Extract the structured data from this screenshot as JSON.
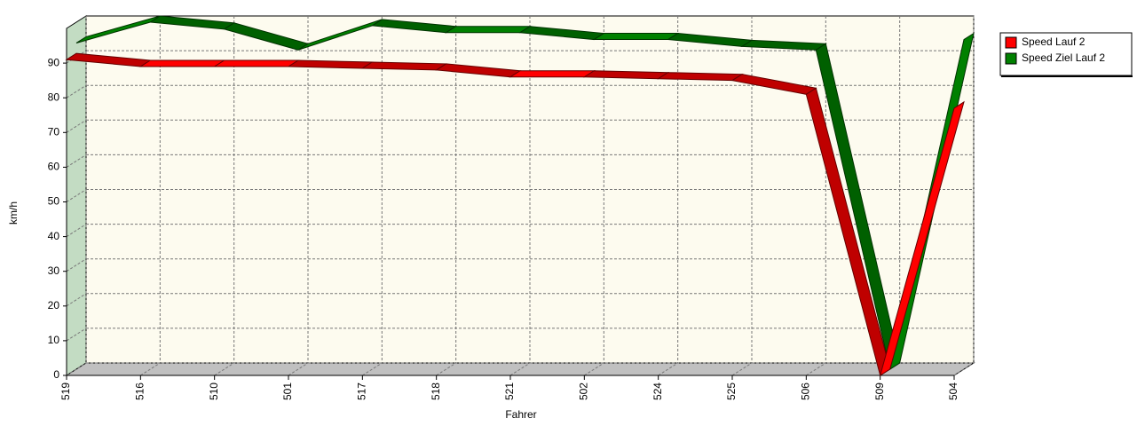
{
  "chart_data": {
    "type": "ribbon3d",
    "x_label": "Fahrer",
    "y_label": "km/h",
    "categories": [
      "519",
      "516",
      "510",
      "501",
      "517",
      "518",
      "521",
      "502",
      "524",
      "525",
      "506",
      "509",
      "504"
    ],
    "series": [
      {
        "name": "Speed Lauf 2",
        "color": "#ff0000",
        "values": [
          91,
          89,
          89,
          89,
          88.5,
          88,
          86,
          86,
          85.5,
          85,
          81,
          0,
          77
        ]
      },
      {
        "name": "Speed Ziel Lauf 2",
        "color": "#008000",
        "values": [
          94,
          100,
          98,
          92,
          99,
          97,
          97,
          95,
          95,
          93,
          92,
          0,
          95
        ]
      }
    ],
    "ylim": [
      0,
      100
    ],
    "yticks": [
      0,
      10,
      20,
      30,
      40,
      50,
      60,
      70,
      80,
      90
    ],
    "grid": true,
    "legend": "top-right"
  }
}
